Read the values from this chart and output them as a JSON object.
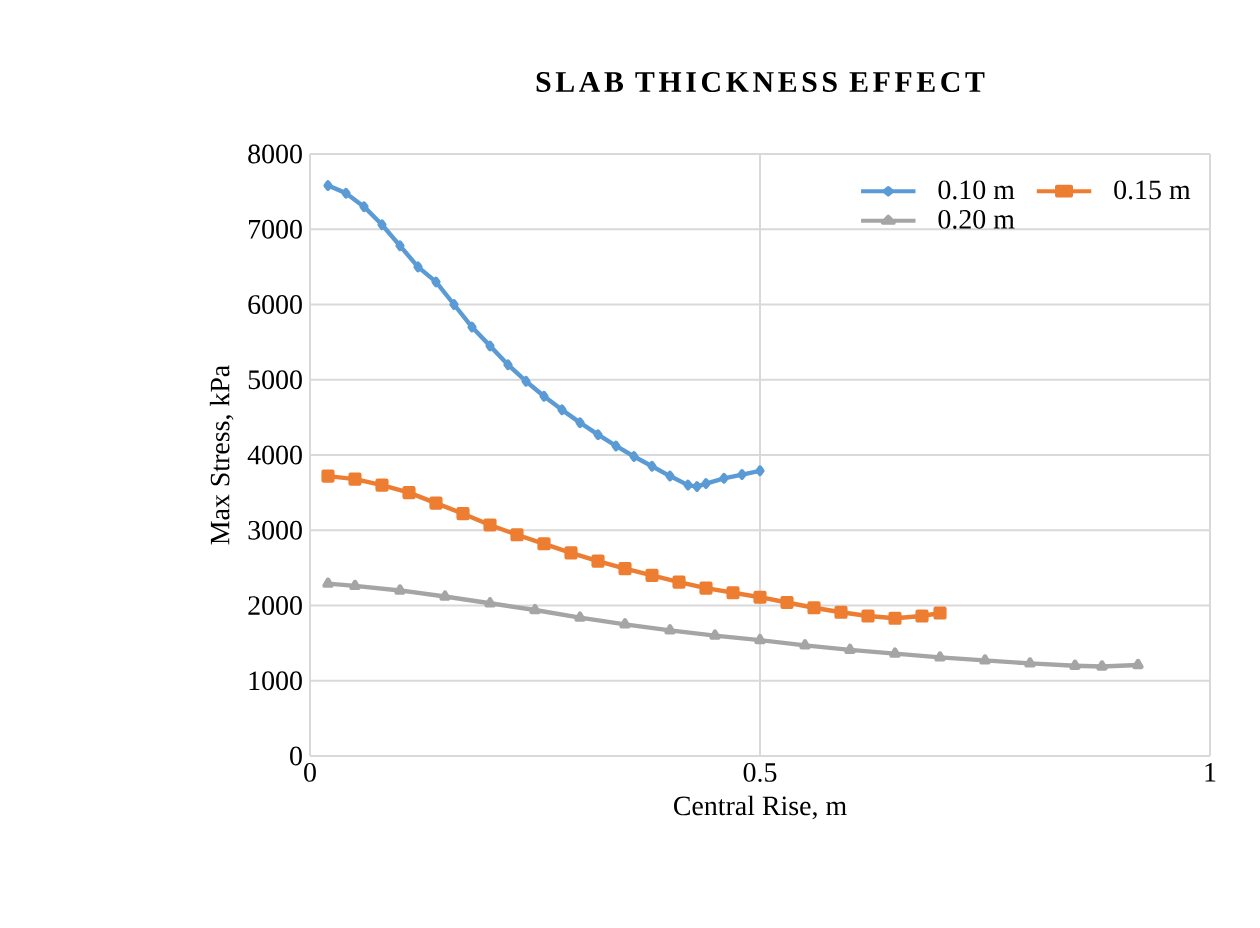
{
  "chart_data": {
    "type": "line",
    "title": "SLAB THICKNESS EFFECT",
    "xlabel": "Central Rise, m",
    "ylabel": "Max Stress, kPa",
    "xlim": [
      0,
      1
    ],
    "xticks": [
      0,
      0.5,
      1
    ],
    "ylim": [
      0,
      8000
    ],
    "yticks": [
      0,
      1000,
      2000,
      3000,
      4000,
      5000,
      6000,
      7000,
      8000
    ],
    "grid": true,
    "legend": "top right",
    "series": [
      {
        "name": "0.10 m",
        "color": "#5b9bd5",
        "marker": "diamond",
        "x": [
          0.02,
          0.04,
          0.06,
          0.08,
          0.1,
          0.12,
          0.14,
          0.16,
          0.18,
          0.2,
          0.22,
          0.24,
          0.26,
          0.28,
          0.3,
          0.32,
          0.34,
          0.36,
          0.38,
          0.4,
          0.42,
          0.43,
          0.44,
          0.46,
          0.48,
          0.5
        ],
        "values": [
          7580,
          7480,
          7300,
          7060,
          6780,
          6500,
          6300,
          6000,
          5700,
          5450,
          5200,
          4980,
          4780,
          4600,
          4430,
          4270,
          4120,
          3980,
          3850,
          3720,
          3600,
          3580,
          3620,
          3690,
          3740,
          3790
        ]
      },
      {
        "name": "0.15 m",
        "color": "#ed7d31",
        "marker": "square",
        "x": [
          0.02,
          0.05,
          0.08,
          0.11,
          0.14,
          0.17,
          0.2,
          0.23,
          0.26,
          0.29,
          0.32,
          0.35,
          0.38,
          0.41,
          0.44,
          0.47,
          0.5,
          0.53,
          0.56,
          0.59,
          0.62,
          0.65,
          0.68,
          0.7
        ],
        "values": [
          3720,
          3680,
          3600,
          3500,
          3360,
          3220,
          3070,
          2940,
          2820,
          2700,
          2590,
          2490,
          2400,
          2310,
          2230,
          2170,
          2110,
          2040,
          1970,
          1910,
          1860,
          1830,
          1860,
          1900
        ]
      },
      {
        "name": "0.20 m",
        "color": "#a5a5a5",
        "marker": "triangle",
        "x": [
          0.02,
          0.05,
          0.1,
          0.15,
          0.2,
          0.25,
          0.3,
          0.35,
          0.4,
          0.45,
          0.5,
          0.55,
          0.6,
          0.65,
          0.7,
          0.75,
          0.8,
          0.85,
          0.88,
          0.92
        ],
        "values": [
          2290,
          2260,
          2200,
          2120,
          2030,
          1940,
          1840,
          1750,
          1670,
          1600,
          1540,
          1470,
          1410,
          1360,
          1310,
          1270,
          1230,
          1200,
          1190,
          1210
        ]
      }
    ]
  }
}
